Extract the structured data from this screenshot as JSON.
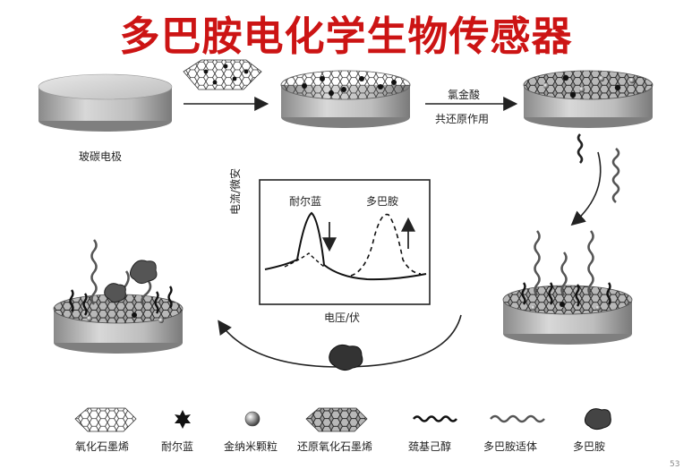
{
  "title": "多巴胺电化学生物传感器",
  "labels": {
    "electrode": "玻碳电极",
    "arrow_top": "氯金酸",
    "arrow_bottom": "共还原作用",
    "y_axis": "电流/微安",
    "x_axis": "电压/伏",
    "peak_nile": "耐尔蓝",
    "peak_dopamine": "多巴胺"
  },
  "legend": [
    {
      "label": "氧化石墨烯",
      "icon": "graphene-oxide-sheet-icon"
    },
    {
      "label": "耐尔蓝",
      "icon": "nile-blue-star-icon"
    },
    {
      "label": "金纳米颗粒",
      "icon": "gold-nanoparticle-icon"
    },
    {
      "label": "还原氧化石墨烯",
      "icon": "reduced-graphene-oxide-icon"
    },
    {
      "label": "巯基己醇",
      "icon": "mercaptohexanol-icon"
    },
    {
      "label": "多巴胺适体",
      "icon": "dopamine-aptamer-icon"
    },
    {
      "label": "多巴胺",
      "icon": "dopamine-blob-icon"
    }
  ],
  "page_number": "53",
  "colors": {
    "title": "#cc1414"
  }
}
